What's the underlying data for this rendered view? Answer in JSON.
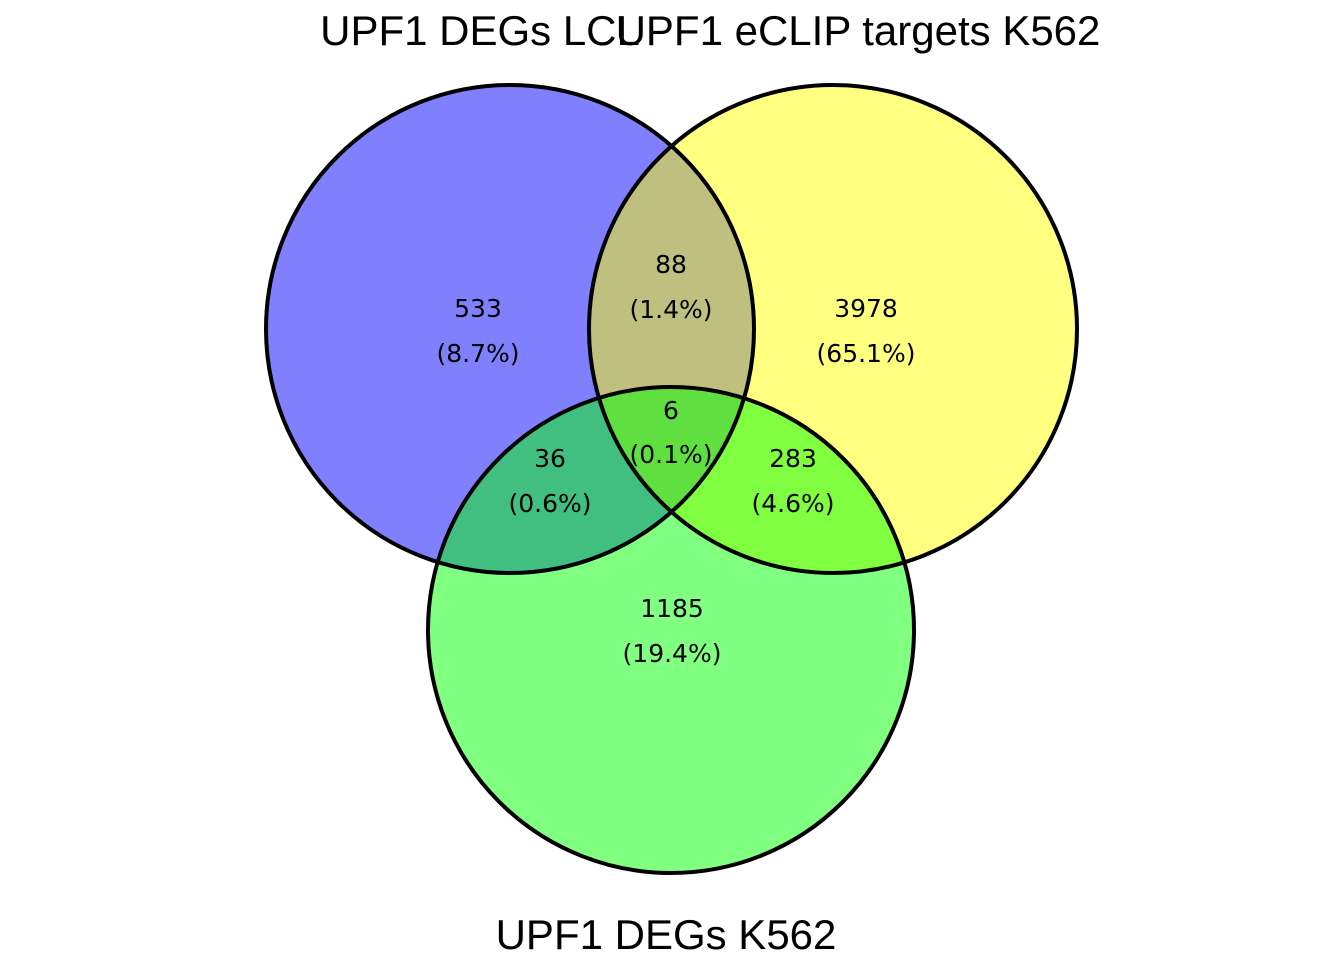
{
  "diagram": {
    "type": "venn",
    "sets": [
      {
        "key": "lcl",
        "label": "UPF1 DEGs LCL",
        "color": "#8080ff"
      },
      {
        "key": "eclip",
        "label": "UPF1 eCLIP targets K562",
        "color": "#ffff80"
      },
      {
        "key": "k562",
        "label": "UPF1 DEGs K562",
        "color": "#80ff80"
      }
    ],
    "regions": [
      {
        "id": "lcl-only",
        "count": "533",
        "percent": "(8.7%)"
      },
      {
        "id": "eclip-only",
        "count": "3978",
        "percent": "(65.1%)"
      },
      {
        "id": "lcl-eclip",
        "count": "88",
        "percent": "(1.4%)"
      },
      {
        "id": "all-three",
        "count": "6",
        "percent": "(0.1%)"
      },
      {
        "id": "lcl-k562",
        "count": "36",
        "percent": "(0.6%)"
      },
      {
        "id": "eclip-k562",
        "count": "283",
        "percent": "(4.6%)"
      },
      {
        "id": "k562-only",
        "count": "1185",
        "percent": "(19.4%)"
      }
    ],
    "overlap_colors": {
      "lcl_eclip": "#bfbf80",
      "lcl_k562": "#40bf80",
      "eclip_k562": "#80ff40",
      "all_three": "#60df40"
    },
    "outline_color": "#000000"
  }
}
